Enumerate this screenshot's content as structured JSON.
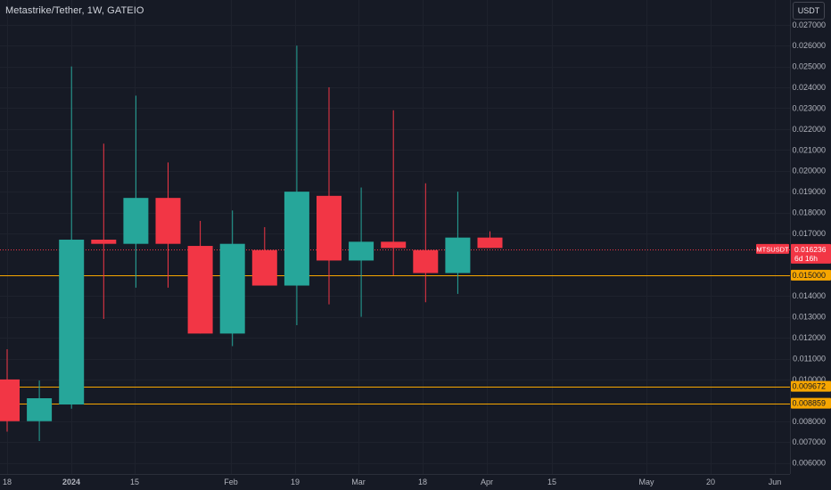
{
  "title": "Metastrike/Tether, 1W, GATEIO",
  "currency_button": "USDT",
  "colors": {
    "background": "#161a25",
    "up": "#26a69a",
    "down": "#f23645",
    "level_line": "#f7a600",
    "current_price_line": "#f23645",
    "grid": "#1e222d",
    "axis_text": "#b2b5be"
  },
  "chart_data": {
    "type": "candlestick",
    "timeframe": "1W",
    "y_ticks": [
      "0.027000",
      "0.026000",
      "0.025000",
      "0.024000",
      "0.023000",
      "0.022000",
      "0.021000",
      "0.020000",
      "0.019000",
      "0.018000",
      "0.017000",
      "0.014000",
      "0.013000",
      "0.012000",
      "0.011000",
      "0.010000",
      "0.008000",
      "0.007000",
      "0.006000"
    ],
    "x_ticks": [
      "18",
      "2024",
      "15",
      "Feb",
      "19",
      "Mar",
      "18",
      "Apr",
      "15",
      "May",
      "20",
      "Jun"
    ],
    "ylim": [
      0.0056,
      0.028
    ],
    "candles": [
      {
        "week": "Dec 18",
        "open": 0.01,
        "high": 0.01145,
        "low": 0.0075,
        "close": 0.008
      },
      {
        "week": "Dec 25",
        "open": 0.008,
        "high": 0.00995,
        "low": 0.00705,
        "close": 0.0091
      },
      {
        "week": "Jan 1",
        "open": 0.0088,
        "high": 0.025,
        "low": 0.0086,
        "close": 0.0167
      },
      {
        "week": "Jan 8",
        "open": 0.0167,
        "high": 0.0213,
        "low": 0.0129,
        "close": 0.0165
      },
      {
        "week": "Jan 15",
        "open": 0.0165,
        "high": 0.0236,
        "low": 0.0144,
        "close": 0.0187
      },
      {
        "week": "Jan 22",
        "open": 0.0187,
        "high": 0.0204,
        "low": 0.0144,
        "close": 0.0165
      },
      {
        "week": "Jan 29",
        "open": 0.0164,
        "high": 0.0176,
        "low": 0.0122,
        "close": 0.0122
      },
      {
        "week": "Feb 5",
        "open": 0.0122,
        "high": 0.0181,
        "low": 0.0116,
        "close": 0.0165
      },
      {
        "week": "Feb 12",
        "open": 0.0162,
        "high": 0.0173,
        "low": 0.0145,
        "close": 0.0145
      },
      {
        "week": "Feb 19",
        "open": 0.0145,
        "high": 0.026,
        "low": 0.0126,
        "close": 0.019
      },
      {
        "week": "Feb 26",
        "open": 0.0188,
        "high": 0.024,
        "low": 0.0136,
        "close": 0.0157
      },
      {
        "week": "Mar 4",
        "open": 0.0157,
        "high": 0.0192,
        "low": 0.013,
        "close": 0.0166
      },
      {
        "week": "Mar 11",
        "open": 0.0166,
        "high": 0.0229,
        "low": 0.015,
        "close": 0.0163
      },
      {
        "week": "Mar 18",
        "open": 0.0162,
        "high": 0.0194,
        "low": 0.0137,
        "close": 0.0151
      },
      {
        "week": "Mar 25",
        "open": 0.0151,
        "high": 0.019,
        "low": 0.0141,
        "close": 0.0168
      },
      {
        "week": "Apr 1",
        "open": 0.0168,
        "high": 0.0171,
        "low": 0.0163,
        "close": 0.0163
      }
    ],
    "current_price": {
      "symbol": "MTSUSDT",
      "value": "0.016236",
      "countdown": "6d 16h",
      "level": 0.016236
    },
    "price_lines": [
      {
        "label": "0.015000",
        "level": 0.015
      },
      {
        "label": "0.009672",
        "level": 0.009672
      },
      {
        "label": "0.008859",
        "level": 0.008859
      }
    ]
  }
}
